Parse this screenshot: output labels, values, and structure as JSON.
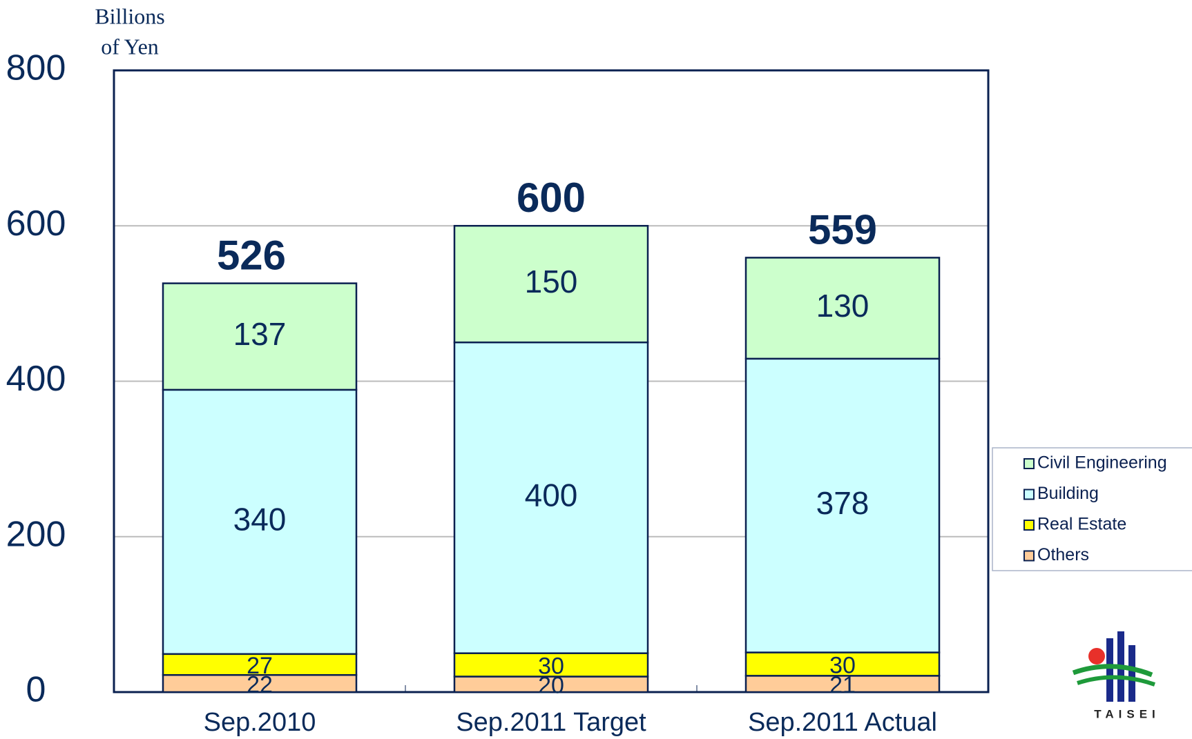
{
  "chart_data": {
    "type": "stacked_bar",
    "ylabel": [
      "Billions",
      "of Yen"
    ],
    "categories": [
      "Sep.2010",
      "Sep.2011 Target",
      "Sep.2011 Actual"
    ],
    "series": [
      {
        "name": "Others",
        "color": "#ffcc99",
        "values": [
          22,
          20,
          21
        ]
      },
      {
        "name": "Real Estate",
        "color": "#ffff00",
        "values": [
          27,
          30,
          30
        ]
      },
      {
        "name": "Building",
        "color": "#ccffff",
        "values": [
          340,
          400,
          378
        ]
      },
      {
        "name": "Civil Engineering",
        "color": "#ccffcc",
        "values": [
          137,
          150,
          130
        ]
      }
    ],
    "totals": [
      526,
      600,
      559
    ],
    "ylim": [
      0,
      800
    ],
    "yticks": [
      0,
      200,
      400,
      600,
      800
    ],
    "grid": true,
    "legend": "right",
    "logo_text": "TAISEI"
  }
}
